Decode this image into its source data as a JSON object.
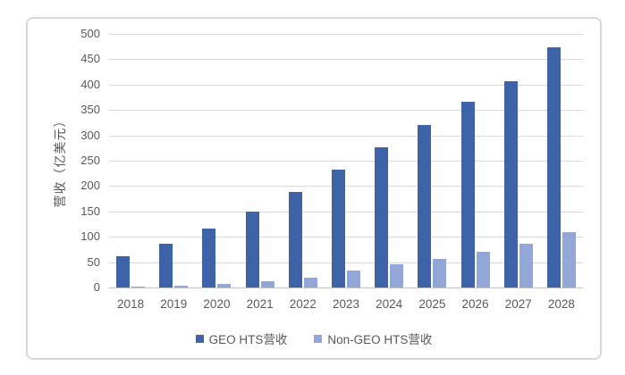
{
  "chart_data": {
    "type": "bar",
    "title": "",
    "ylabel": "营收（亿美元）",
    "xlabel": "",
    "categories": [
      "2018",
      "2019",
      "2020",
      "2021",
      "2022",
      "2023",
      "2024",
      "2025",
      "2026",
      "2027",
      "2028"
    ],
    "series": [
      {
        "name": "GEO HTS营收",
        "color": "#3E63A8",
        "values": [
          62,
          86,
          117,
          150,
          189,
          232,
          277,
          321,
          366,
          406,
          474
        ]
      },
      {
        "name": "Non-GEO HTS营收",
        "color": "#92A7D8",
        "values": [
          2,
          4,
          7,
          12,
          19,
          33,
          45,
          57,
          71,
          86,
          110
        ]
      }
    ],
    "ylim": [
      0,
      500
    ],
    "yticks": [
      0,
      50,
      100,
      150,
      200,
      250,
      300,
      350,
      400,
      450,
      500
    ],
    "grid": true,
    "legend_position": "bottom"
  },
  "colors": {
    "grid": "#D9D9D9",
    "axis_line": "#C3C3C3",
    "tick_text": "#595959",
    "frame_border": "#D7D7DB",
    "background": "#FFFFFF"
  }
}
